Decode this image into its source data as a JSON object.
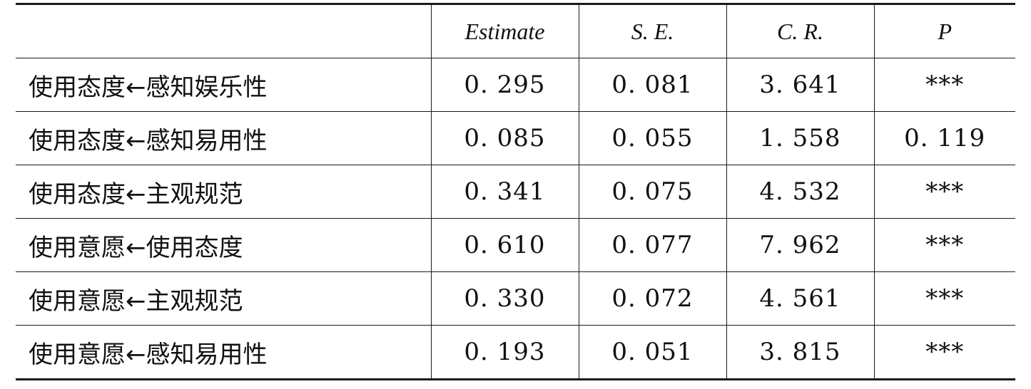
{
  "table": {
    "headers": [
      "",
      "Estimate",
      "S. E.",
      "C. R.",
      "P"
    ],
    "rows": [
      {
        "path": "使用态度←感知娱乐性",
        "estimate": "0. 295",
        "se": "0. 081",
        "cr": "3. 641",
        "p": "***"
      },
      {
        "path": "使用态度←感知易用性",
        "estimate": "0. 085",
        "se": "0. 055",
        "cr": "1. 558",
        "p": "0. 119"
      },
      {
        "path": "使用态度←主观规范",
        "estimate": "0. 341",
        "se": "0. 075",
        "cr": "4. 532",
        "p": "***"
      },
      {
        "path": "使用意愿←使用态度",
        "estimate": "0. 610",
        "se": "0. 077",
        "cr": "7. 962",
        "p": "***"
      },
      {
        "path": "使用意愿←主观规范",
        "estimate": "0. 330",
        "se": "0. 072",
        "cr": "4. 561",
        "p": "***"
      },
      {
        "path": "使用意愿←感知易用性",
        "estimate": "0. 193",
        "se": "0. 051",
        "cr": "3. 815",
        "p": "***"
      }
    ]
  }
}
